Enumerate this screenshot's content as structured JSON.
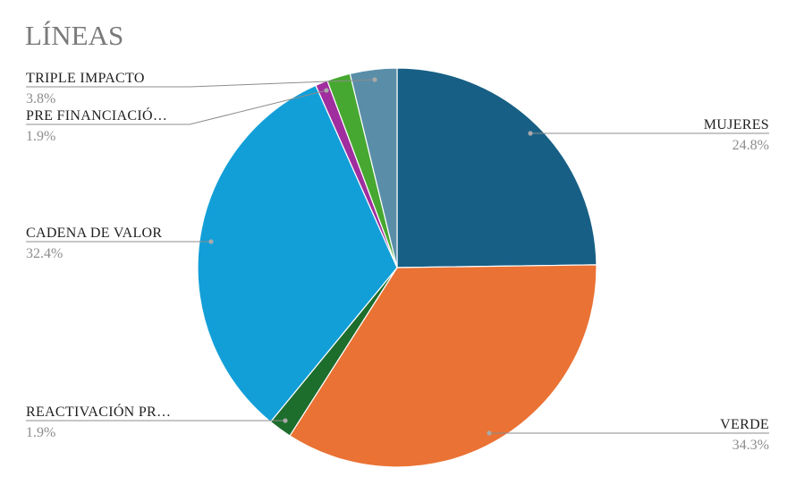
{
  "chart_data": {
    "type": "pie",
    "title": "LÍNEAS",
    "start_angle_deg": 0,
    "direction": "clockwise",
    "slices": [
      {
        "label": "MUJERES",
        "value": 24.8,
        "pct_label": "24.8%",
        "color": "#175f85",
        "label_side": "right"
      },
      {
        "label": "VERDE",
        "value": 34.3,
        "pct_label": "34.3%",
        "color": "#ea7234",
        "label_side": "right"
      },
      {
        "label": "REACTIVACIÓN PR…",
        "value": 1.9,
        "pct_label": "1.9%",
        "color": "#1d6d2d",
        "label_side": "left"
      },
      {
        "label": "CADENA DE VALOR",
        "value": 32.4,
        "pct_label": "32.4%",
        "color": "#129fd8",
        "label_side": "left"
      },
      {
        "label": "",
        "value": 1.0,
        "pct_label": "",
        "color": "#a02e9e",
        "label_side": "none"
      },
      {
        "label": "PRE FINANCIACIÓ…",
        "value": 1.9,
        "pct_label": "1.9%",
        "color": "#46a830",
        "label_side": "left"
      },
      {
        "label": "TRIPLE IMPACTO",
        "value": 3.8,
        "pct_label": "3.8%",
        "color": "#5a8ea8",
        "label_side": "left"
      }
    ],
    "legend": "callout labels"
  }
}
